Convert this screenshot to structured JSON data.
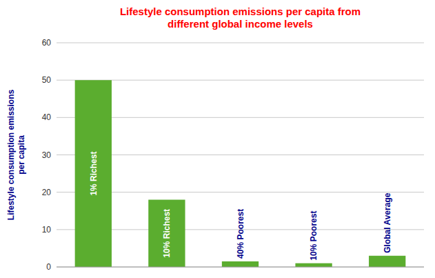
{
  "chart_data": {
    "type": "bar",
    "title": "Lifestyle consumption emissions per capita from\ndifferent global income levels",
    "y_label": "Lifestyle consumption emissions\nper capita",
    "categories": [
      "1% Richest",
      "10% Richest",
      "40% Poorest",
      "10% Poorest",
      "Global Average"
    ],
    "values": [
      50,
      18,
      1.5,
      1.0,
      3.0
    ],
    "color": "#5BAD2F",
    "ylim": [
      0,
      60
    ],
    "yticks": [
      0,
      10,
      20,
      30,
      40,
      50,
      60
    ],
    "grid": true,
    "tick_labels": "y"
  }
}
